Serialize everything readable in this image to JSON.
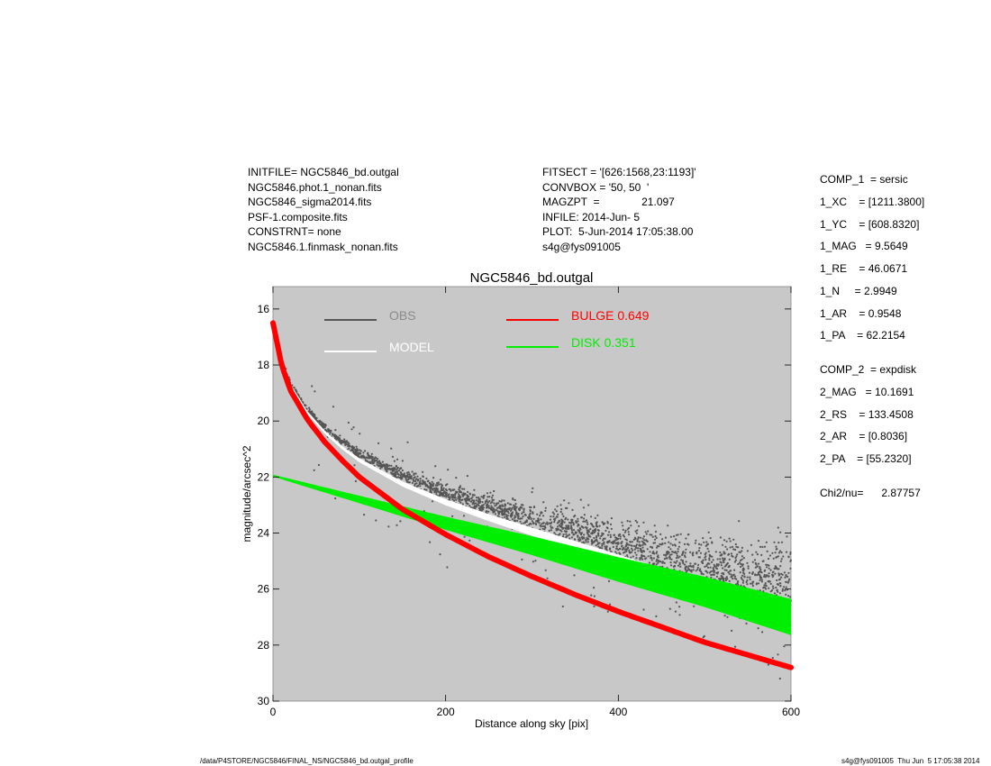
{
  "header": {
    "left_lines": [
      "INITFILE= NGC5846_bd.outgal",
      "NGC5846.phot.1_nonan.fits",
      "NGC5846_sigma2014.fits",
      "PSF-1.composite.fits",
      "CONSTRNT= none",
      "NGC5846.1.finmask_nonan.fits"
    ],
    "mid_lines": [
      "FITSECT = '[626:1568,23:1193]'",
      "CONVBOX = '50, 50  '",
      "MAGZPT  =              21.097",
      "INFILE: 2014-Jun- 5",
      "PLOT:  5-Jun-2014 17:05:38.00",
      "s4g@fys091005"
    ]
  },
  "params": {
    "lines": [
      "COMP_1  = sersic",
      "1_XC    = [1211.3800]",
      "1_YC    = [608.8320]",
      "1_MAG   = 9.5649",
      "1_RE    = 46.0671",
      "1_N     = 2.9949",
      "1_AR    = 0.9548",
      "1_PA    = 62.2154",
      "COMP_2  = expdisk",
      "2_MAG   = 10.1691",
      "2_RS    = 133.4508",
      "2_AR    = [0.8036]",
      "2_PA    = [55.2320]",
      "Chi2/nu=      2.87757"
    ]
  },
  "footer": {
    "left": "/data/P4STORE/NGC5846/FINAL_NS/NGC5846_bd.outgal_profile",
    "right": "s4g@fys091005  Thu Jun  5 17:05:38 2014"
  },
  "colors": {
    "plot_bg": "#c8c8c8",
    "obs": "#555555",
    "model": "#ffffff",
    "bulge": "#ff0000",
    "disk": "#00ee00",
    "legend_obs_text": "#8a8a8a"
  },
  "chart_data": {
    "type": "scatter",
    "title": "NGC5846_bd.outgal",
    "xlabel": "Distance along sky [pix]",
    "ylabel": "magnitude/arcsec^2",
    "xlim": [
      0,
      600
    ],
    "ylim": [
      30,
      15.2
    ],
    "y_inverted": true,
    "grid": false,
    "legend_placement": "top",
    "x_ticks": [
      "0",
      "200",
      "400",
      "600"
    ],
    "y_ticks": [
      "16",
      "18",
      "20",
      "22",
      "24",
      "26",
      "28",
      "30"
    ],
    "legend": [
      {
        "label": "OBS",
        "color": "#555555"
      },
      {
        "label": "MODEL",
        "color": "#ffffff"
      },
      {
        "label": "BULGE  0.649",
        "color": "#ff0000"
      },
      {
        "label": "DISK  0.351",
        "color": "#00ee00"
      }
    ],
    "series": [
      {
        "name": "BULGE",
        "color": "#ff0000",
        "x": [
          0,
          10,
          20,
          40,
          60,
          80,
          100,
          150,
          200,
          250,
          300,
          350,
          400,
          450,
          500,
          550,
          600
        ],
        "y": [
          16.5,
          18.0,
          18.9,
          19.95,
          20.75,
          21.4,
          22.0,
          23.15,
          24.05,
          24.85,
          25.55,
          26.2,
          26.8,
          27.35,
          27.9,
          28.35,
          28.8
        ]
      },
      {
        "name": "DISK",
        "color": "#00ee00",
        "x": [
          0,
          100,
          200,
          300,
          400,
          500,
          600
        ],
        "y": [
          21.95,
          22.8,
          23.65,
          24.45,
          25.3,
          26.1,
          27.0
        ]
      },
      {
        "name": "MODEL",
        "color": "#ffffff",
        "x": [
          0,
          10,
          20,
          40,
          60,
          80,
          100,
          150,
          200,
          250,
          300,
          350,
          400,
          450,
          500,
          550,
          600
        ],
        "y": [
          16.45,
          17.9,
          18.7,
          19.7,
          20.4,
          20.95,
          21.4,
          22.25,
          22.9,
          23.45,
          23.95,
          24.45,
          24.95,
          25.45,
          25.95,
          26.45,
          26.95
        ]
      },
      {
        "name": "OBS",
        "color": "#555555",
        "x": [
          0,
          10,
          20,
          40,
          60,
          80,
          100,
          150,
          200,
          250,
          300,
          350,
          400,
          450,
          500,
          550,
          600
        ],
        "y": [
          16.45,
          17.85,
          18.65,
          19.6,
          20.25,
          20.75,
          21.15,
          21.95,
          22.55,
          23.05,
          23.5,
          23.95,
          24.4,
          24.85,
          25.25,
          25.55,
          25.8
        ]
      }
    ]
  }
}
